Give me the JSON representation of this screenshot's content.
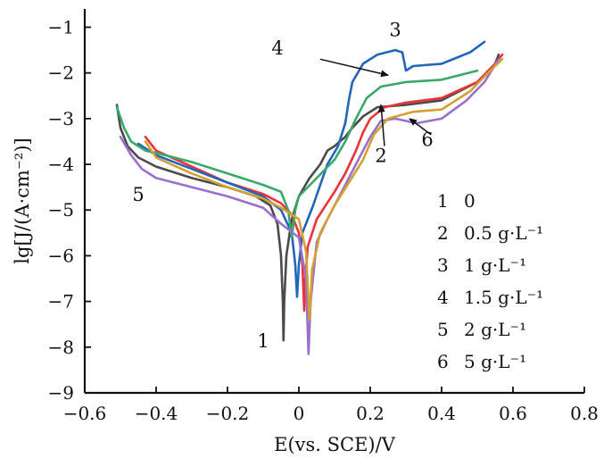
{
  "chart_data": {
    "type": "line",
    "xlabel": "E(vs. SCE)/V",
    "ylabel": "lg[J/(A·cm⁻²)]",
    "xlim": [
      -0.6,
      0.8
    ],
    "ylim": [
      -9,
      -0.6
    ],
    "x_ticks": [
      -0.6,
      -0.4,
      -0.2,
      0,
      0.2,
      0.4,
      0.6,
      0.8
    ],
    "x_tick_labels": [
      "−0.6",
      "−0.4",
      "−0.2",
      "0",
      "0.2",
      "0.4",
      "0.6",
      "0.8"
    ],
    "y_ticks": [
      -9,
      -8,
      -7,
      -6,
      -5,
      -4,
      -3,
      -2,
      -1
    ],
    "y_tick_labels": [
      "−9",
      "−8",
      "−7",
      "−6",
      "−5",
      "−4",
      "−3",
      "−2",
      "−1"
    ],
    "grid": false,
    "legend_position": "bottom-right",
    "legend": [
      {
        "id": "1",
        "text": "0"
      },
      {
        "id": "2",
        "text": "0.5 g·L⁻¹"
      },
      {
        "id": "3",
        "text": "1 g·L⁻¹"
      },
      {
        "id": "4",
        "text": "1.5 g·L⁻¹"
      },
      {
        "id": "5",
        "text": "2 g·L⁻¹"
      },
      {
        "id": "6",
        "text": "5 g·L⁻¹"
      }
    ],
    "series": [
      {
        "name": "1",
        "color": "#4a4a4a",
        "points": [
          [
            -0.51,
            -2.7
          ],
          [
            -0.5,
            -3.2
          ],
          [
            -0.48,
            -3.6
          ],
          [
            -0.45,
            -3.85
          ],
          [
            -0.4,
            -4.05
          ],
          [
            -0.3,
            -4.3
          ],
          [
            -0.2,
            -4.5
          ],
          [
            -0.12,
            -4.7
          ],
          [
            -0.08,
            -4.9
          ],
          [
            -0.06,
            -5.3
          ],
          [
            -0.05,
            -6.0
          ],
          [
            -0.045,
            -7.0
          ],
          [
            -0.043,
            -7.85
          ],
          [
            -0.041,
            -7.0
          ],
          [
            -0.035,
            -6.0
          ],
          [
            -0.02,
            -5.2
          ],
          [
            0.0,
            -4.7
          ],
          [
            0.03,
            -4.3
          ],
          [
            0.06,
            -4.0
          ],
          [
            0.08,
            -3.7
          ],
          [
            0.1,
            -3.6
          ],
          [
            0.13,
            -3.4
          ],
          [
            0.15,
            -3.2
          ],
          [
            0.18,
            -2.95
          ],
          [
            0.22,
            -2.75
          ],
          [
            0.3,
            -2.7
          ],
          [
            0.4,
            -2.6
          ],
          [
            0.5,
            -2.2
          ],
          [
            0.55,
            -1.8
          ],
          [
            0.56,
            -1.6
          ]
        ]
      },
      {
        "name": "2",
        "color": "#e8333a",
        "points": [
          [
            -0.43,
            -3.4
          ],
          [
            -0.4,
            -3.7
          ],
          [
            -0.3,
            -4.05
          ],
          [
            -0.2,
            -4.4
          ],
          [
            -0.1,
            -4.65
          ],
          [
            -0.05,
            -4.85
          ],
          [
            -0.02,
            -5.1
          ],
          [
            0.0,
            -5.5
          ],
          [
            0.01,
            -6.2
          ],
          [
            0.015,
            -7.2
          ],
          [
            0.018,
            -6.5
          ],
          [
            0.025,
            -5.8
          ],
          [
            0.05,
            -5.2
          ],
          [
            0.1,
            -4.6
          ],
          [
            0.13,
            -4.2
          ],
          [
            0.16,
            -3.7
          ],
          [
            0.18,
            -3.3
          ],
          [
            0.2,
            -3.0
          ],
          [
            0.24,
            -2.75
          ],
          [
            0.3,
            -2.65
          ],
          [
            0.4,
            -2.55
          ],
          [
            0.5,
            -2.2
          ],
          [
            0.55,
            -1.8
          ],
          [
            0.57,
            -1.6
          ]
        ]
      },
      {
        "name": "3",
        "color": "#2266bb",
        "points": [
          [
            -0.45,
            -3.55
          ],
          [
            -0.4,
            -3.8
          ],
          [
            -0.3,
            -4.1
          ],
          [
            -0.2,
            -4.4
          ],
          [
            -0.1,
            -4.7
          ],
          [
            -0.05,
            -5.0
          ],
          [
            -0.02,
            -5.5
          ],
          [
            -0.01,
            -6.2
          ],
          [
            -0.005,
            -6.9
          ],
          [
            0.0,
            -6.2
          ],
          [
            0.01,
            -5.5
          ],
          [
            0.04,
            -4.9
          ],
          [
            0.08,
            -4.0
          ],
          [
            0.11,
            -3.6
          ],
          [
            0.13,
            -3.1
          ],
          [
            0.14,
            -2.6
          ],
          [
            0.15,
            -2.2
          ],
          [
            0.18,
            -1.8
          ],
          [
            0.22,
            -1.6
          ],
          [
            0.27,
            -1.5
          ],
          [
            0.29,
            -1.55
          ],
          [
            0.3,
            -1.95
          ],
          [
            0.32,
            -1.85
          ],
          [
            0.4,
            -1.8
          ],
          [
            0.48,
            -1.55
          ],
          [
            0.52,
            -1.32
          ]
        ]
      },
      {
        "name": "4",
        "color": "#3aa86a",
        "points": [
          [
            -0.51,
            -2.75
          ],
          [
            -0.49,
            -3.2
          ],
          [
            -0.47,
            -3.5
          ],
          [
            -0.43,
            -3.7
          ],
          [
            -0.4,
            -3.75
          ],
          [
            -0.35,
            -3.85
          ],
          [
            -0.3,
            -3.95
          ],
          [
            -0.2,
            -4.2
          ],
          [
            -0.1,
            -4.45
          ],
          [
            -0.05,
            -4.6
          ],
          [
            -0.03,
            -5.0
          ],
          [
            -0.02,
            -5.6
          ],
          [
            -0.01,
            -5.0
          ],
          [
            0.0,
            -4.7
          ],
          [
            0.05,
            -4.3
          ],
          [
            0.1,
            -3.9
          ],
          [
            0.13,
            -3.5
          ],
          [
            0.16,
            -3.0
          ],
          [
            0.19,
            -2.55
          ],
          [
            0.23,
            -2.3
          ],
          [
            0.3,
            -2.2
          ],
          [
            0.4,
            -2.15
          ],
          [
            0.5,
            -1.95
          ]
        ]
      },
      {
        "name": "5",
        "color": "#9b6fd0",
        "points": [
          [
            -0.5,
            -3.4
          ],
          [
            -0.47,
            -3.8
          ],
          [
            -0.44,
            -4.1
          ],
          [
            -0.4,
            -4.3
          ],
          [
            -0.3,
            -4.5
          ],
          [
            -0.2,
            -4.7
          ],
          [
            -0.1,
            -4.95
          ],
          [
            -0.05,
            -5.3
          ],
          [
            0.0,
            -5.6
          ],
          [
            0.02,
            -6.5
          ],
          [
            0.027,
            -8.15
          ],
          [
            0.033,
            -7.0
          ],
          [
            0.05,
            -5.7
          ],
          [
            0.08,
            -5.2
          ],
          [
            0.12,
            -4.6
          ],
          [
            0.16,
            -4.0
          ],
          [
            0.2,
            -3.4
          ],
          [
            0.23,
            -3.05
          ],
          [
            0.27,
            -3.0
          ],
          [
            0.33,
            -3.1
          ],
          [
            0.4,
            -3.0
          ],
          [
            0.47,
            -2.6
          ],
          [
            0.52,
            -2.2
          ],
          [
            0.56,
            -1.7
          ]
        ]
      },
      {
        "name": "6",
        "color": "#d4a032",
        "points": [
          [
            -0.43,
            -3.5
          ],
          [
            -0.4,
            -3.85
          ],
          [
            -0.3,
            -4.2
          ],
          [
            -0.2,
            -4.5
          ],
          [
            -0.1,
            -4.75
          ],
          [
            -0.05,
            -4.95
          ],
          [
            0.0,
            -5.2
          ],
          [
            0.02,
            -5.9
          ],
          [
            0.03,
            -7.4
          ],
          [
            0.037,
            -6.3
          ],
          [
            0.06,
            -5.5
          ],
          [
            0.1,
            -4.9
          ],
          [
            0.14,
            -4.4
          ],
          [
            0.18,
            -3.9
          ],
          [
            0.21,
            -3.35
          ],
          [
            0.25,
            -3.0
          ],
          [
            0.32,
            -2.85
          ],
          [
            0.4,
            -2.8
          ],
          [
            0.48,
            -2.4
          ],
          [
            0.53,
            -2.0
          ],
          [
            0.57,
            -1.7
          ]
        ]
      }
    ],
    "curve_labels": [
      {
        "text": "1",
        "x": -0.1,
        "y": -8.0
      },
      {
        "text": "2",
        "x": 0.23,
        "y": -3.95
      },
      {
        "text": "3",
        "x": 0.27,
        "y": -1.2
      },
      {
        "text": "4",
        "x": -0.06,
        "y": -1.6
      },
      {
        "text": "5",
        "x": -0.45,
        "y": -4.8
      },
      {
        "text": "6",
        "x": 0.36,
        "y": -3.6
      }
    ],
    "annotations": [
      {
        "for": "4",
        "from": [
          0.06,
          -1.7
        ],
        "to": [
          0.25,
          -2.05
        ]
      },
      {
        "for": "2",
        "from": [
          0.24,
          -3.6
        ],
        "to": [
          0.23,
          -2.7
        ]
      },
      {
        "for": "6",
        "from": [
          0.37,
          -3.35
        ],
        "to": [
          0.31,
          -3.0
        ]
      }
    ]
  }
}
